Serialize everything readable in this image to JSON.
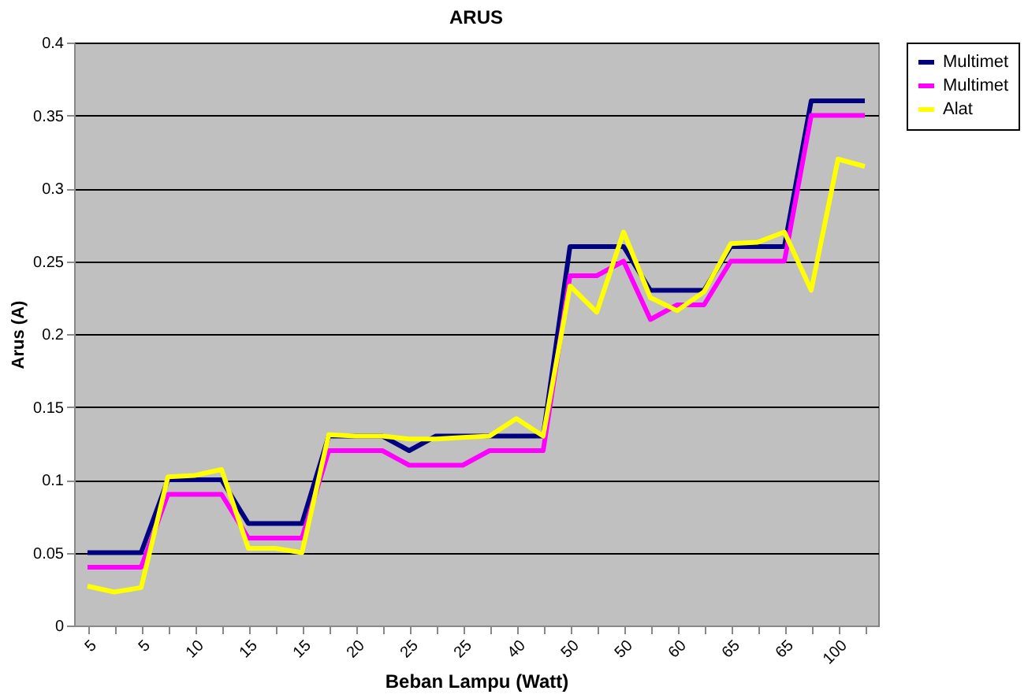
{
  "chart_data": {
    "type": "line",
    "title": "ARUS",
    "xlabel": "Beban Lampu (Watt)",
    "ylabel": "Arus (A)",
    "categories": [
      "5",
      null,
      "5",
      null,
      "10",
      null,
      "15",
      null,
      "15",
      null,
      "20",
      null,
      "25",
      null,
      "25",
      null,
      "40",
      null,
      "50",
      null,
      "50",
      null,
      "60",
      null,
      "65",
      null,
      "65",
      null,
      "100",
      null
    ],
    "series": [
      {
        "name": "Multimet",
        "color": "#000080",
        "values": [
          0.05,
          0.05,
          0.05,
          0.1,
          0.1,
          0.1,
          0.07,
          0.07,
          0.07,
          0.13,
          0.13,
          0.13,
          0.12,
          0.13,
          0.13,
          0.13,
          0.13,
          0.13,
          0.26,
          0.26,
          0.26,
          0.23,
          0.23,
          0.23,
          0.26,
          0.26,
          0.26,
          0.36,
          0.36,
          0.36
        ]
      },
      {
        "name": "Multimet",
        "color": "#ff00ff",
        "values": [
          0.04,
          0.04,
          0.04,
          0.09,
          0.09,
          0.09,
          0.06,
          0.06,
          0.06,
          0.12,
          0.12,
          0.12,
          0.11,
          0.11,
          0.11,
          0.12,
          0.12,
          0.12,
          0.24,
          0.24,
          0.25,
          0.21,
          0.22,
          0.22,
          0.25,
          0.25,
          0.25,
          0.35,
          0.35,
          0.35
        ]
      },
      {
        "name": "Alat",
        "color": "#ffff00",
        "values": [
          0.027,
          0.023,
          0.026,
          0.102,
          0.103,
          0.107,
          0.053,
          0.053,
          0.05,
          0.131,
          0.13,
          0.13,
          0.128,
          0.128,
          0.129,
          0.13,
          0.142,
          0.13,
          0.233,
          0.215,
          0.27,
          0.225,
          0.216,
          0.229,
          0.262,
          0.263,
          0.27,
          0.23,
          0.32,
          0.315
        ]
      }
    ],
    "ylim": [
      0,
      0.4
    ],
    "yticks": [
      0,
      0.05,
      0.1,
      0.15,
      0.2,
      0.25,
      0.3,
      0.35,
      0.4
    ],
    "grid": "y",
    "legend": "right",
    "marker": "none",
    "line_style": "solid"
  }
}
